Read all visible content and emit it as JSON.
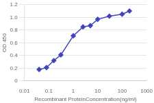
{
  "chart_data": {
    "type": "line",
    "x": [
      0.04,
      0.08,
      0.16,
      0.31,
      1.0,
      2.5,
      5.0,
      10.0,
      30.0,
      100.0,
      200.0
    ],
    "values": [
      0.18,
      0.21,
      0.32,
      0.41,
      0.71,
      0.85,
      0.87,
      0.97,
      1.02,
      1.05,
      1.1
    ],
    "color": "#4444bb",
    "marker": "diamond",
    "xlabel": "Recombinant ProteinConcentration(ng/ml)",
    "ylabel": "OD 450",
    "log": "x",
    "xlim": [
      0.01,
      1000
    ],
    "ylim": [
      0,
      1.2
    ],
    "xticks": [
      0.01,
      0.1,
      1,
      10,
      100,
      1000
    ],
    "yticks": [
      0,
      0.2,
      0.4,
      0.6,
      0.8,
      {
        "value": 1,
        "label": "1.0"
      },
      1.2
    ],
    "grid": "y"
  }
}
